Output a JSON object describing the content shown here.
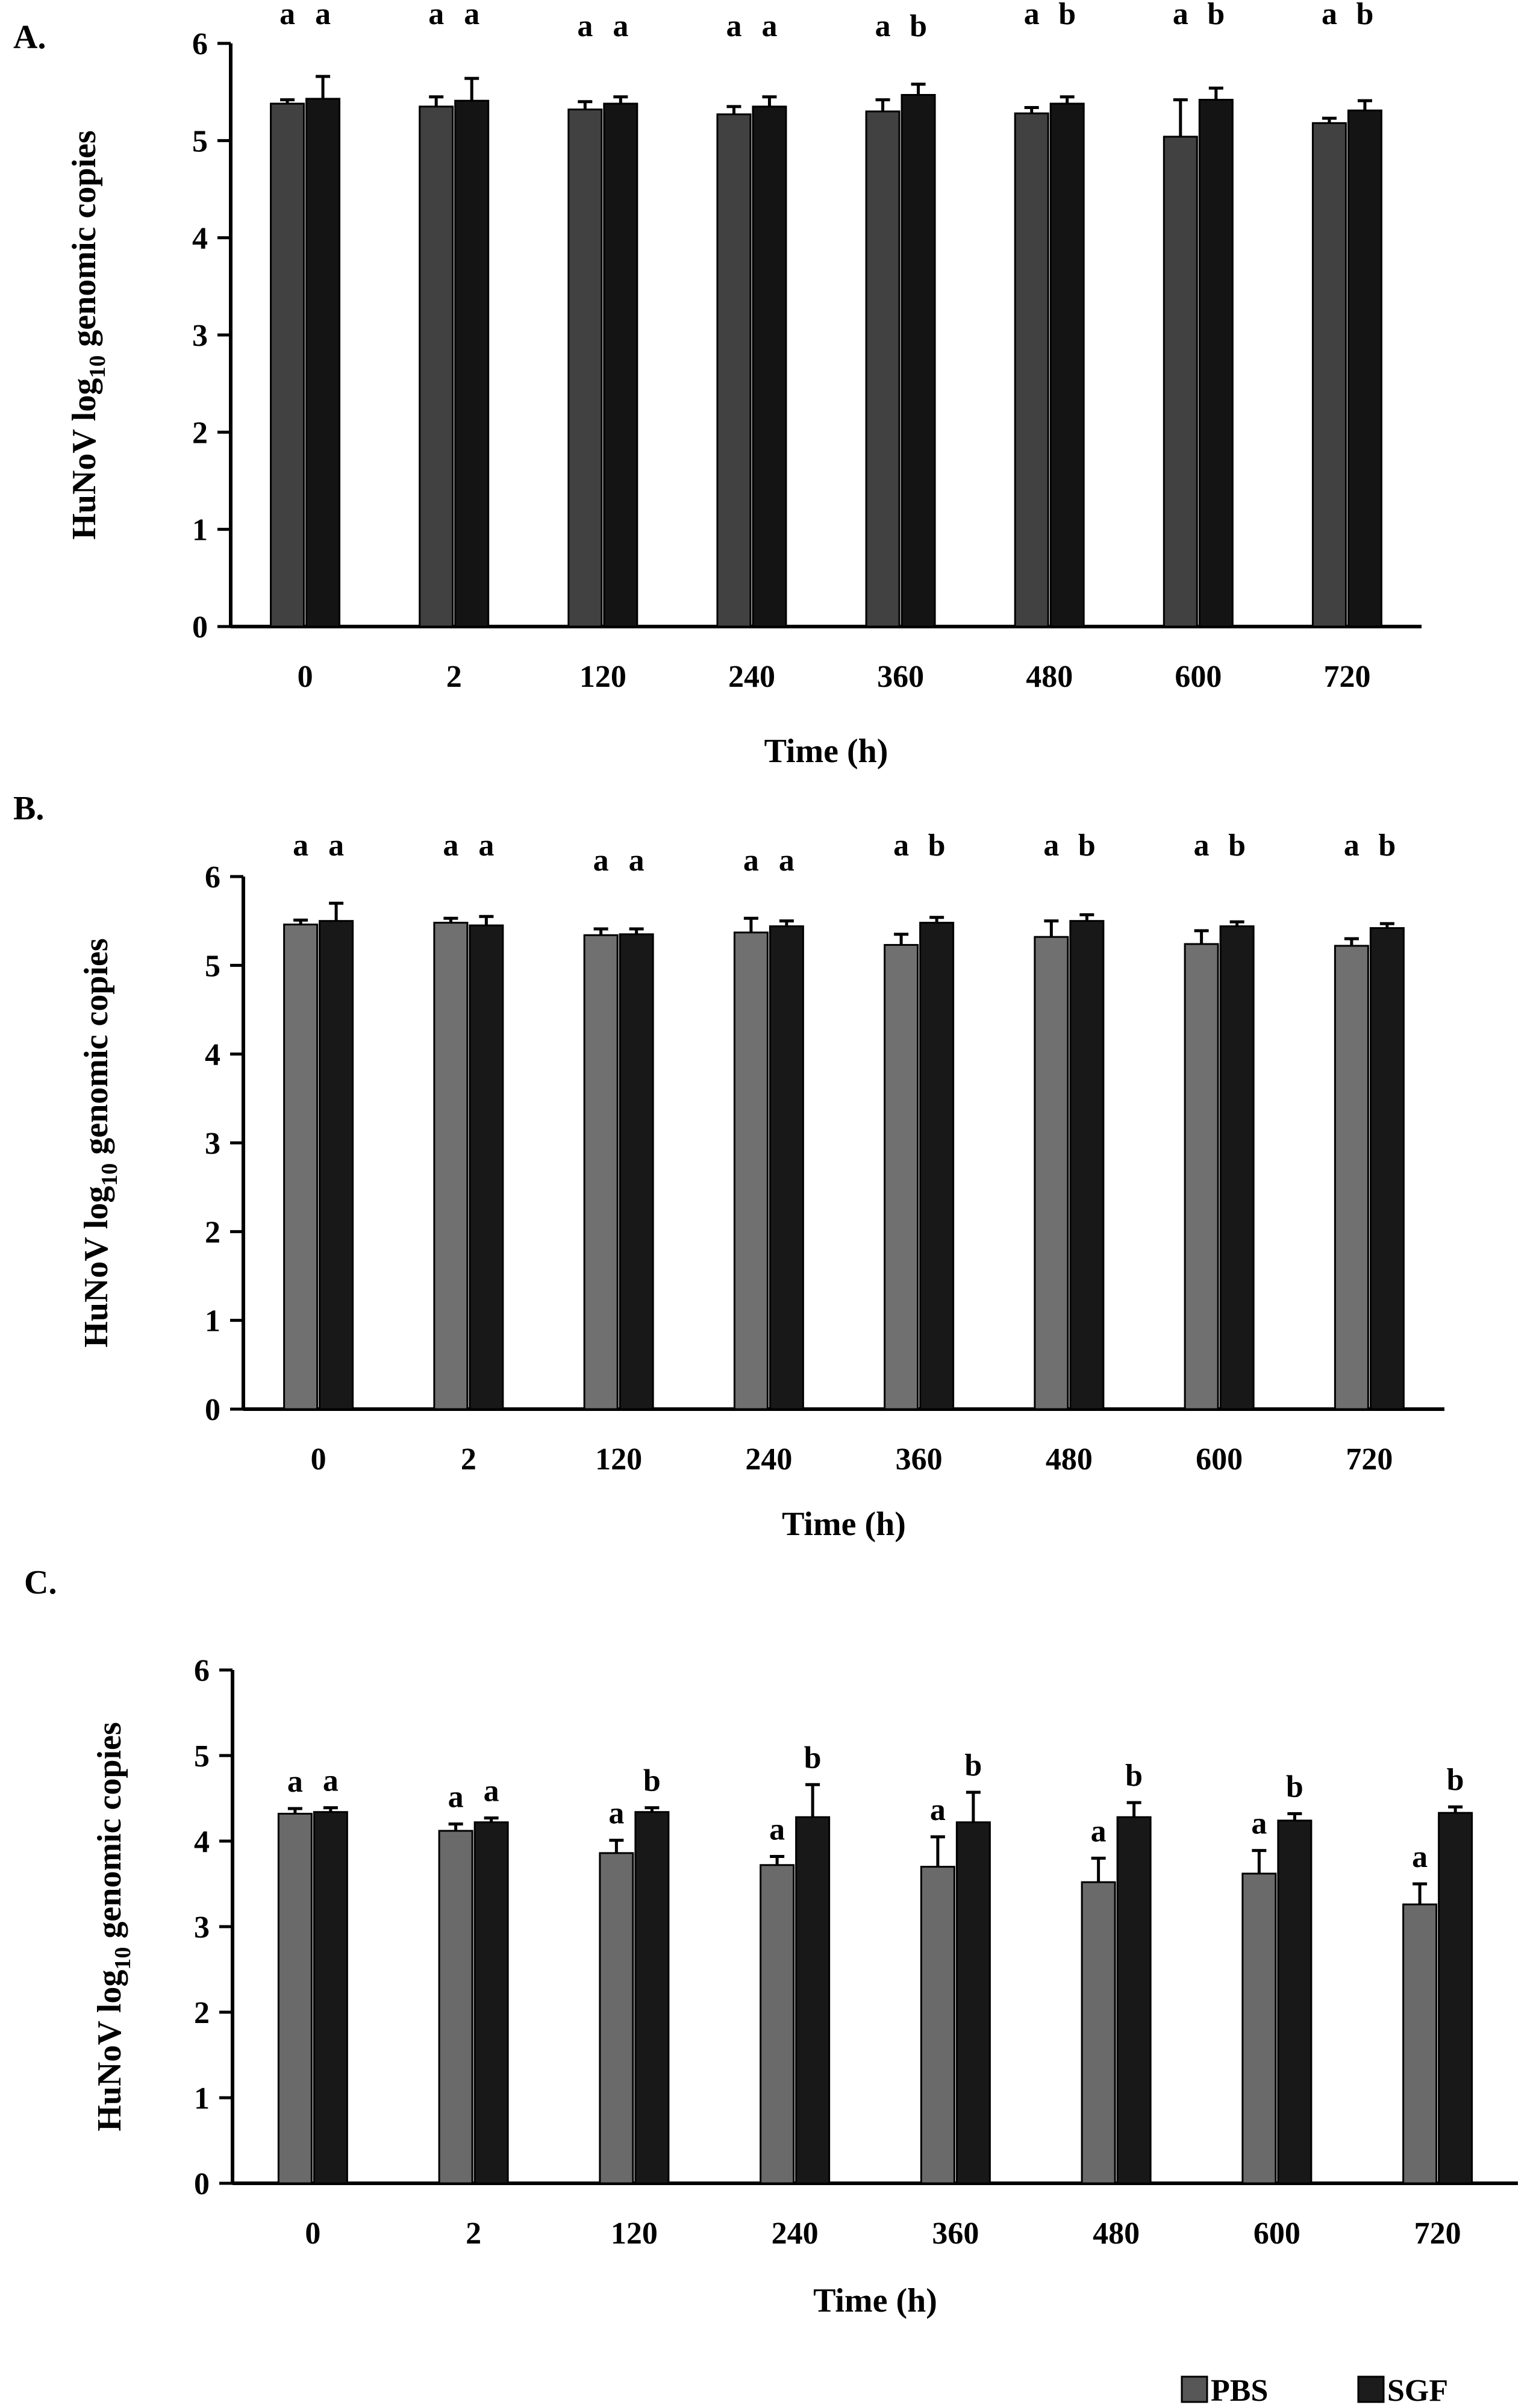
{
  "figure": {
    "legend": {
      "position": "bottom-right",
      "items": [
        {
          "name": "PBS",
          "color": "#575757"
        },
        {
          "name": "SGF",
          "color": "#1c1c1c"
        }
      ]
    }
  },
  "chart_data": [
    {
      "panel_label": "A.",
      "type": "bar",
      "title": "",
      "xlabel": "Time (h)",
      "ylabel_main": "HuNoV log",
      "ylabel_sub": "10",
      "ylabel_rest": " genomic copies",
      "ylim": [
        0,
        6
      ],
      "yticks": [
        0,
        1,
        2,
        3,
        4,
        5,
        6
      ],
      "categories": [
        "0",
        "2",
        "120",
        "240",
        "360",
        "480",
        "600",
        "720"
      ],
      "series": [
        {
          "name": "PBS",
          "color": "#414141",
          "values": [
            5.38,
            5.35,
            5.32,
            5.27,
            5.3,
            5.28,
            5.04,
            5.18
          ],
          "errors": [
            0.04,
            0.1,
            0.08,
            0.08,
            0.12,
            0.06,
            0.38,
            0.05
          ],
          "letters": [
            "a",
            "a",
            "a",
            "a",
            "a",
            "a",
            "a",
            "a"
          ]
        },
        {
          "name": "SGF",
          "color": "#141414",
          "values": [
            5.43,
            5.41,
            5.38,
            5.35,
            5.47,
            5.38,
            5.42,
            5.31
          ],
          "errors": [
            0.23,
            0.23,
            0.07,
            0.1,
            0.11,
            0.07,
            0.12,
            0.1
          ],
          "letters": [
            "a",
            "a",
            "a",
            "a",
            "b",
            "b",
            "b",
            "b"
          ]
        }
      ]
    },
    {
      "panel_label": "B.",
      "type": "bar",
      "title": "",
      "xlabel": "Time (h)",
      "ylabel_main": "HuNoV log",
      "ylabel_sub": "10",
      "ylabel_rest": " genomic copies",
      "ylim": [
        0,
        6
      ],
      "yticks": [
        0,
        1,
        2,
        3,
        4,
        5,
        6
      ],
      "categories": [
        "0",
        "2",
        "120",
        "240",
        "360",
        "480",
        "600",
        "720"
      ],
      "series": [
        {
          "name": "PBS",
          "color": "#707070",
          "values": [
            5.46,
            5.48,
            5.34,
            5.37,
            5.23,
            5.32,
            5.24,
            5.22
          ],
          "errors": [
            0.05,
            0.05,
            0.07,
            0.16,
            0.12,
            0.18,
            0.15,
            0.08
          ],
          "letters": [
            "a",
            "a",
            "a",
            "a",
            "a",
            "a",
            "a",
            "a"
          ]
        },
        {
          "name": "SGF",
          "color": "#181818",
          "values": [
            5.5,
            5.45,
            5.35,
            5.44,
            5.48,
            5.5,
            5.44,
            5.42
          ],
          "errors": [
            0.2,
            0.1,
            0.06,
            0.06,
            0.06,
            0.07,
            0.05,
            0.05
          ],
          "letters": [
            "a",
            "a",
            "a",
            "a",
            "b",
            "b",
            "b",
            "b"
          ]
        }
      ]
    },
    {
      "panel_label": "C.",
      "type": "bar",
      "title": "",
      "xlabel": "Time (h)",
      "ylabel_main": "HuNoV log",
      "ylabel_sub": "10",
      "ylabel_rest": " genomic copies",
      "ylim": [
        0,
        6
      ],
      "yticks": [
        0,
        1,
        2,
        3,
        4,
        5,
        6
      ],
      "categories": [
        "0",
        "2",
        "120",
        "240",
        "360",
        "480",
        "600",
        "720"
      ],
      "series": [
        {
          "name": "PBS",
          "color": "#6a6a6a",
          "values": [
            4.32,
            4.12,
            3.86,
            3.72,
            3.7,
            3.52,
            3.62,
            3.26
          ],
          "errors": [
            0.06,
            0.08,
            0.15,
            0.1,
            0.35,
            0.28,
            0.27,
            0.24
          ],
          "letters": [
            "a",
            "a",
            "a",
            "a",
            "a",
            "a",
            "a",
            "a"
          ]
        },
        {
          "name": "SGF",
          "color": "#181818",
          "values": [
            4.34,
            4.22,
            4.34,
            4.28,
            4.22,
            4.28,
            4.24,
            4.33
          ],
          "errors": [
            0.05,
            0.05,
            0.05,
            0.38,
            0.35,
            0.17,
            0.08,
            0.07
          ],
          "letters": [
            "a",
            "a",
            "b",
            "b",
            "b",
            "b",
            "b",
            "b"
          ]
        }
      ]
    }
  ]
}
